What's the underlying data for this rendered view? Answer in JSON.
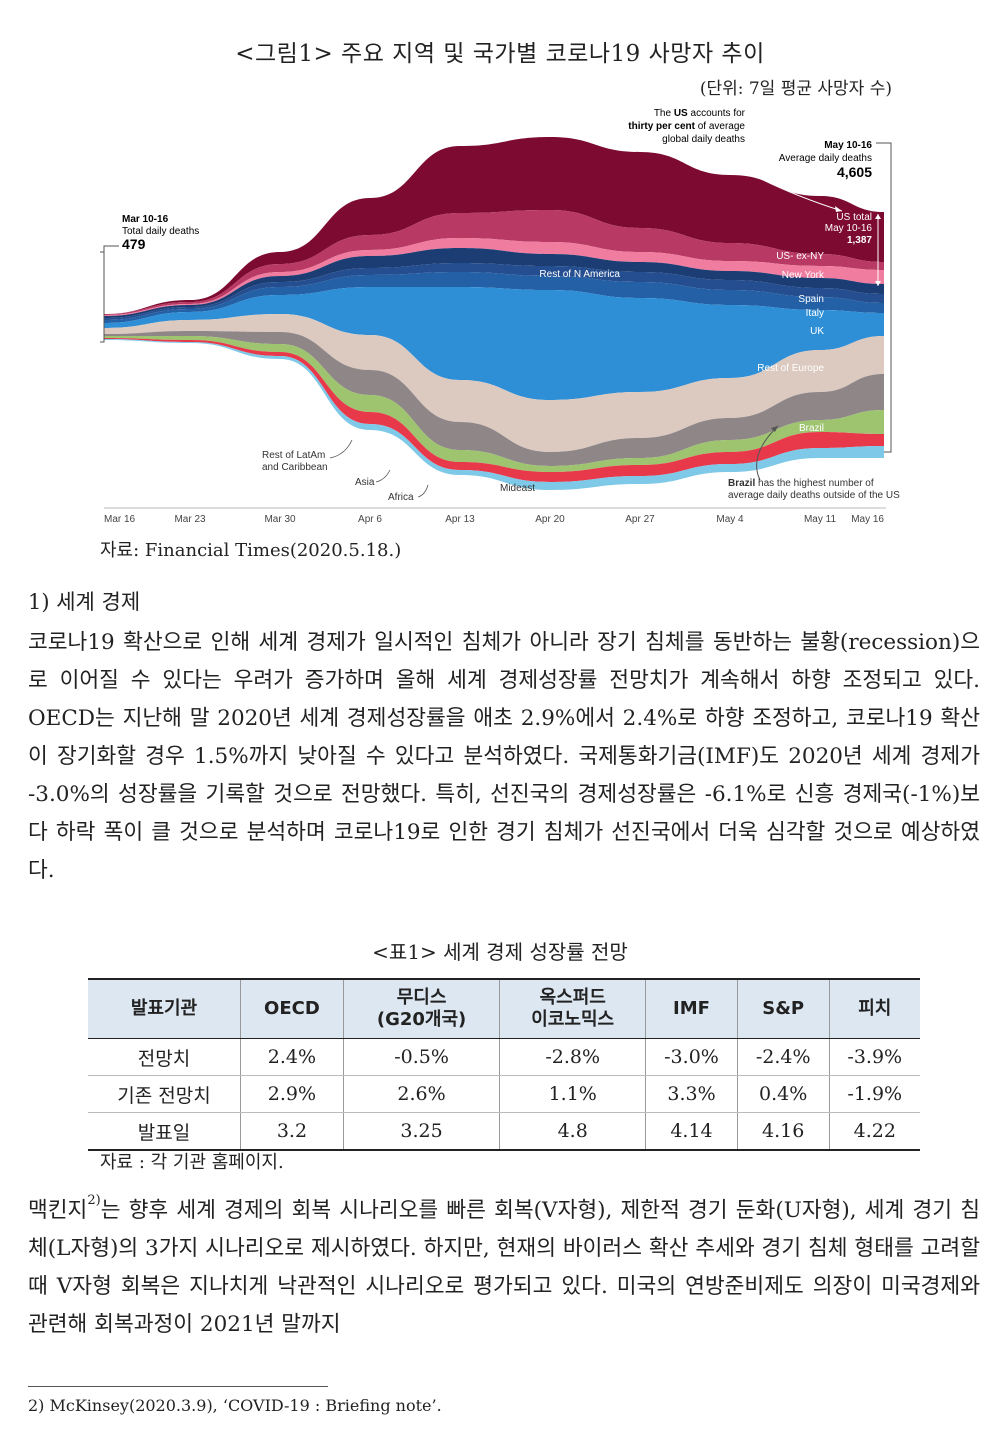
{
  "figure": {
    "title": "<그림1> 주요 지역 및 국가별 코로나19 사망자 추이",
    "unit": "(단위: 7일 평균 사망자 수)",
    "source": "자료: Financial Times(2020.5.18.)"
  },
  "chart_data": {
    "type": "area",
    "subtype": "streamgraph",
    "x_ticks": [
      "Mar 16",
      "Mar 23",
      "Mar 30",
      "Apr 6",
      "Apr 13",
      "Apr 20",
      "Apr 27",
      "May 4",
      "May 11",
      "May 16"
    ],
    "series": [
      {
        "name": "US- ex-NY",
        "color": "#7d0a30"
      },
      {
        "name": "New York",
        "color": "#b83a64"
      },
      {
        "name": "Rest of N America",
        "color": "#f07ca0"
      },
      {
        "name": "Spain",
        "color": "#1b3d73"
      },
      {
        "name": "Italy",
        "color": "#244e8f"
      },
      {
        "name": "UK",
        "color": "#2460a6"
      },
      {
        "name": "Rest of Europe",
        "color": "#2f8fd6"
      },
      {
        "name": "Rest of LatAm and Caribbean",
        "color": "#dcc9c0"
      },
      {
        "name": "Brazil",
        "color": "#8e8687"
      },
      {
        "name": "Asia",
        "color": "#9fc470"
      },
      {
        "name": "Mideast",
        "color": "#e8394b"
      },
      {
        "name": "Africa",
        "color": "#7ec8e8"
      }
    ],
    "annotations": {
      "start_label": "Mar 10-16",
      "start_sub": "Total daily deaths",
      "start_value": "479",
      "us_note_pre": "The ",
      "us_note_bold1": "US",
      "us_note_mid": " accounts for",
      "us_note_bold2": "thirty per cent",
      "us_note_post": " of average",
      "us_note_line3": "global daily deaths",
      "end_label": "May 10-16",
      "end_sub": "Average daily deaths",
      "end_value": "4,605",
      "us_total_label": "US total",
      "us_total_period": "May 10-16",
      "us_total_value": "1,387",
      "brazil_note_bold": "Brazil",
      "brazil_note_rest": " has the highest number of",
      "brazil_note_line2": "average daily deaths outside of the US"
    }
  },
  "section_heading": "1) 세계 경제",
  "paragraph1": "코로나19 확산으로 인해 세계 경제가 일시적인 침체가 아니라 장기 침체를 동반하는 불황(recession)으로 이어질 수 있다는 우려가 증가하며 올해 세계 경제성장률 전망치가 계속해서 하향 조정되고 있다. OECD는 지난해 말 2020년 세계 경제성장률을 애초 2.9%에서 2.4%로 하향 조정하고, 코로나19 확산이 장기화할 경우 1.5%까지 낮아질 수 있다고 분석하였다. 국제통화기금(IMF)도 2020년 세계 경제가 -3.0%의 성장률을 기록할 것으로 전망했다. 특히, 선진국의 경제성장률은 -6.1%로 신흥 경제국(-1%)보다 하락 폭이 클 것으로 분석하며 코로나19로 인한 경기 침체가 선진국에서 더욱 심각할 것으로 예상하였다.",
  "table": {
    "title": "<표1> 세계 경제 성장률 전망",
    "headers": [
      "발표기관",
      "OECD",
      "무디스\n(G20개국)",
      "옥스퍼드\n이코노믹스",
      "IMF",
      "S&P",
      "피치"
    ],
    "rows": [
      [
        "전망치",
        "2.4%",
        "-0.5%",
        "-2.8%",
        "-3.0%",
        "-2.4%",
        "-3.9%"
      ],
      [
        "기존 전망치",
        "2.9%",
        "2.6%",
        "1.1%",
        "3.3%",
        "0.4%",
        "-1.9%"
      ],
      [
        "발표일",
        "3.2",
        "3.25",
        "4.8",
        "4.14",
        "4.16",
        "4.22"
      ]
    ],
    "source": "자료 : 각 기관 홈페이지."
  },
  "paragraph2_a": "맥킨지",
  "paragraph2_sup": "2)",
  "paragraph2_b": "는 향후 세계 경제의 회복 시나리오를 빠른 회복(V자형), 제한적 경기 둔화(U자형), 세계 경기 침체(L자형)의 3가지 시나리오로 제시하였다. 하지만, 현재의 바이러스 확산 추세와 경기 침체 형태를 고려할 때 V자형 회복은 지나치게 낙관적인 시나리오로 평가되고 있다. 미국의 연방준비제도 의장이 미국경제와 관련해 회복과정이 2021년 말까지",
  "footnote": "2) McKinsey(2020.3.9), ‘COVID-19 : Briefing note’."
}
